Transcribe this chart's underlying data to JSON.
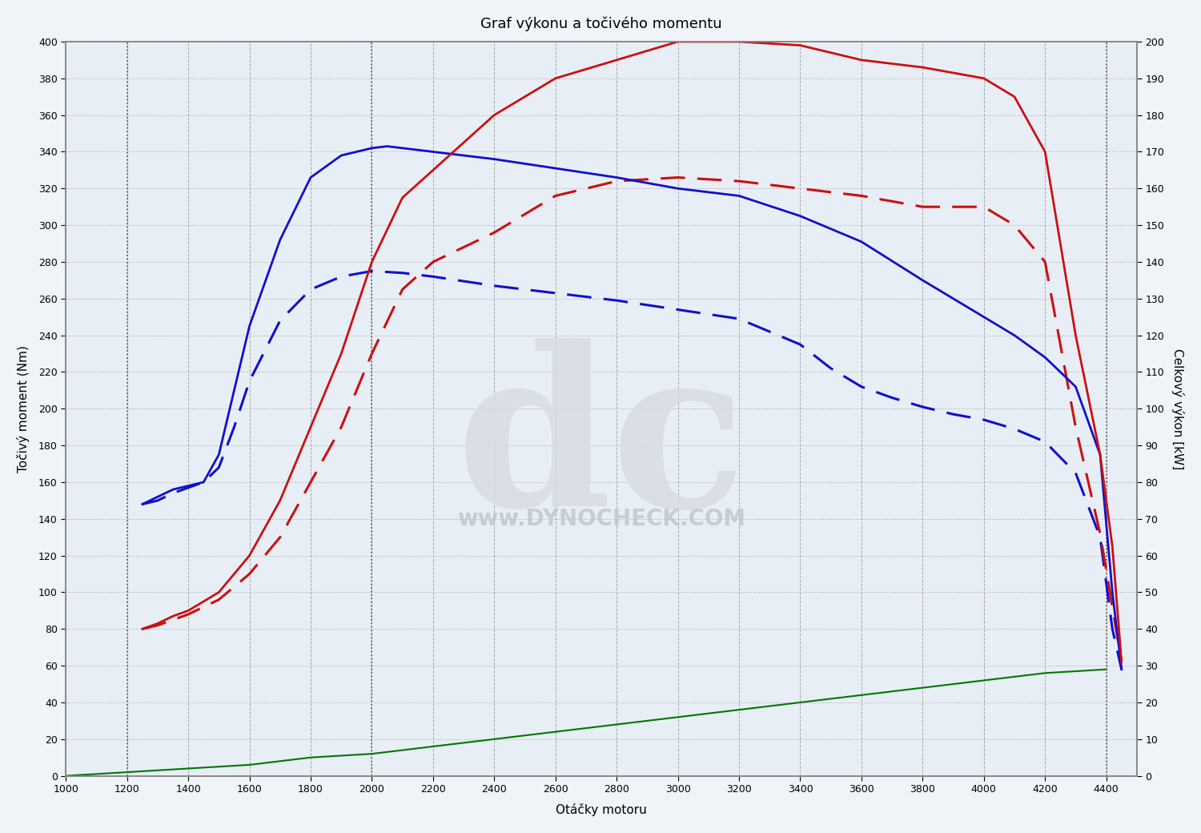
{
  "title": "Graf výkonu a točivého momentu",
  "xlabel": "Otáčky motoru",
  "ylabel_left": "Točivý moment (Nm)",
  "ylabel_right": "Celkový výkon [kW]",
  "xlim": [
    1000,
    4500
  ],
  "ylim_left": [
    0,
    400
  ],
  "ylim_right": [
    0,
    200
  ],
  "xticks": [
    1000,
    1200,
    1400,
    1600,
    1800,
    2000,
    2200,
    2400,
    2600,
    2800,
    3000,
    3200,
    3400,
    3600,
    3800,
    4000,
    4200,
    4400
  ],
  "yticks_left": [
    0,
    20,
    40,
    60,
    80,
    100,
    120,
    140,
    160,
    180,
    200,
    220,
    240,
    260,
    280,
    300,
    320,
    340,
    360,
    380,
    400
  ],
  "yticks_right": [
    0,
    10,
    20,
    30,
    40,
    50,
    60,
    70,
    80,
    90,
    100,
    110,
    120,
    130,
    140,
    150,
    160,
    170,
    180,
    190,
    200
  ],
  "background_color": "#f0f4f8",
  "plot_bg_color": "#e8eef5",
  "grid_color_dotted": "#aaaaaa",
  "grid_color_dashed": "#aaaaaa",
  "watermark": "www.DYNOCHECK.COM",
  "blue_solid_torque": {
    "rpm": [
      1250,
      1300,
      1350,
      1400,
      1450,
      1500,
      1550,
      1600,
      1700,
      1800,
      1900,
      2000,
      2050,
      2100,
      2200,
      2400,
      2600,
      2800,
      3000,
      3200,
      3400,
      3600,
      3800,
      4000,
      4100,
      4200,
      4300,
      4380,
      4420,
      4450
    ],
    "values": [
      148,
      152,
      156,
      158,
      160,
      175,
      210,
      245,
      292,
      326,
      338,
      342,
      343,
      342,
      340,
      336,
      331,
      326,
      320,
      316,
      305,
      291,
      270,
      250,
      240,
      228,
      212,
      175,
      100,
      58
    ]
  },
  "blue_dashed_torque": {
    "rpm": [
      1250,
      1300,
      1350,
      1400,
      1450,
      1500,
      1550,
      1600,
      1700,
      1800,
      1900,
      2000,
      2100,
      2200,
      2400,
      2600,
      2800,
      3000,
      3200,
      3400,
      3500,
      3600,
      3700,
      3800,
      3900,
      4000,
      4100,
      4200,
      4300,
      4380,
      4420,
      4450
    ],
    "values": [
      148,
      150,
      154,
      157,
      160,
      168,
      190,
      215,
      248,
      265,
      272,
      275,
      274,
      272,
      267,
      263,
      259,
      254,
      249,
      235,
      222,
      212,
      206,
      201,
      197,
      194,
      189,
      182,
      165,
      130,
      80,
      58
    ]
  },
  "red_solid_power": {
    "rpm": [
      1250,
      1300,
      1350,
      1400,
      1500,
      1600,
      1700,
      1800,
      1900,
      2000,
      2100,
      2200,
      2400,
      2600,
      2800,
      3000,
      3200,
      3400,
      3450,
      3600,
      3800,
      4000,
      4100,
      4200,
      4300,
      4380,
      4420,
      4450
    ],
    "values": [
      80,
      83,
      87,
      90,
      100,
      120,
      150,
      190,
      230,
      280,
      315,
      330,
      360,
      380,
      390,
      400,
      400,
      398,
      396,
      390,
      386,
      380,
      370,
      340,
      240,
      175,
      125,
      62
    ]
  },
  "red_dashed_power": {
    "rpm": [
      1250,
      1300,
      1350,
      1400,
      1500,
      1600,
      1700,
      1800,
      1900,
      2000,
      2100,
      2200,
      2400,
      2600,
      2800,
      3000,
      3200,
      3400,
      3600,
      3800,
      4000,
      4100,
      4200,
      4300,
      4380,
      4420,
      4450
    ],
    "values": [
      80,
      82,
      85,
      88,
      96,
      110,
      130,
      160,
      190,
      230,
      265,
      280,
      296,
      316,
      324,
      326,
      324,
      320,
      316,
      310,
      310,
      300,
      280,
      190,
      132,
      92,
      62
    ]
  },
  "green_line": {
    "rpm": [
      1000,
      1100,
      1200,
      1400,
      1600,
      1800,
      2000,
      2200,
      2400,
      2600,
      2800,
      3000,
      3200,
      3400,
      3600,
      3800,
      4000,
      4200,
      4400
    ],
    "values": [
      0,
      1,
      2,
      4,
      6,
      10,
      12,
      16,
      20,
      24,
      28,
      32,
      36,
      40,
      44,
      48,
      52,
      56,
      58
    ]
  },
  "colors": {
    "blue_solid": "#1010cc",
    "blue_dashed": "#1010cc",
    "red_solid": "#cc1010",
    "red_dashed": "#cc1010",
    "green": "#007700"
  },
  "dotted_lines_rpm": [
    1200,
    2000,
    4400
  ],
  "figsize": [
    15.0,
    10.4
  ],
  "dpi": 100
}
